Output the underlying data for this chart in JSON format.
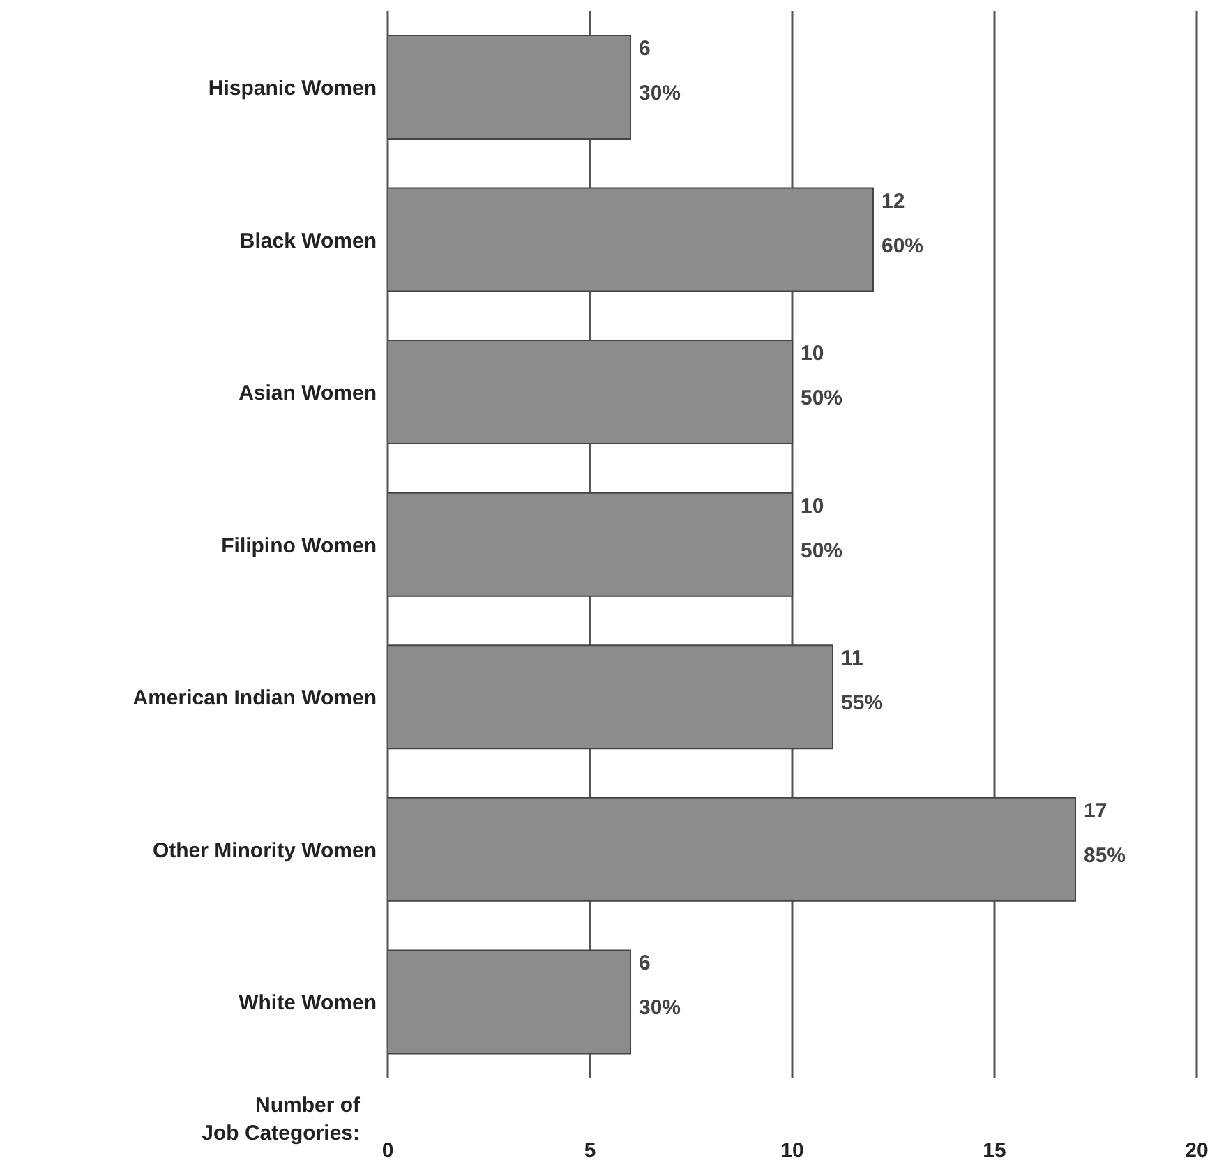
{
  "chart_data": {
    "type": "bar",
    "orientation": "horizontal",
    "xlabel": "Number of\nJob Categories:",
    "categories": [
      "Hispanic  Women",
      "Black  Women",
      "Asian  Women",
      "Filipino  Women",
      "American Indian Women",
      "Other Minority  Women",
      "White  Women"
    ],
    "values": [
      6,
      12,
      10,
      10,
      11,
      17,
      6
    ],
    "value_labels": [
      "6\n30%",
      "12\n60%",
      "10\n50%",
      "10\n50%",
      "11\n55%",
      "17\n85%",
      "6\n30%"
    ],
    "color": "#8c8c8c",
    "xlim": [
      0,
      20
    ],
    "xticks": [
      0,
      5,
      10,
      15,
      20
    ],
    "grid": "x",
    "legend": false
  }
}
